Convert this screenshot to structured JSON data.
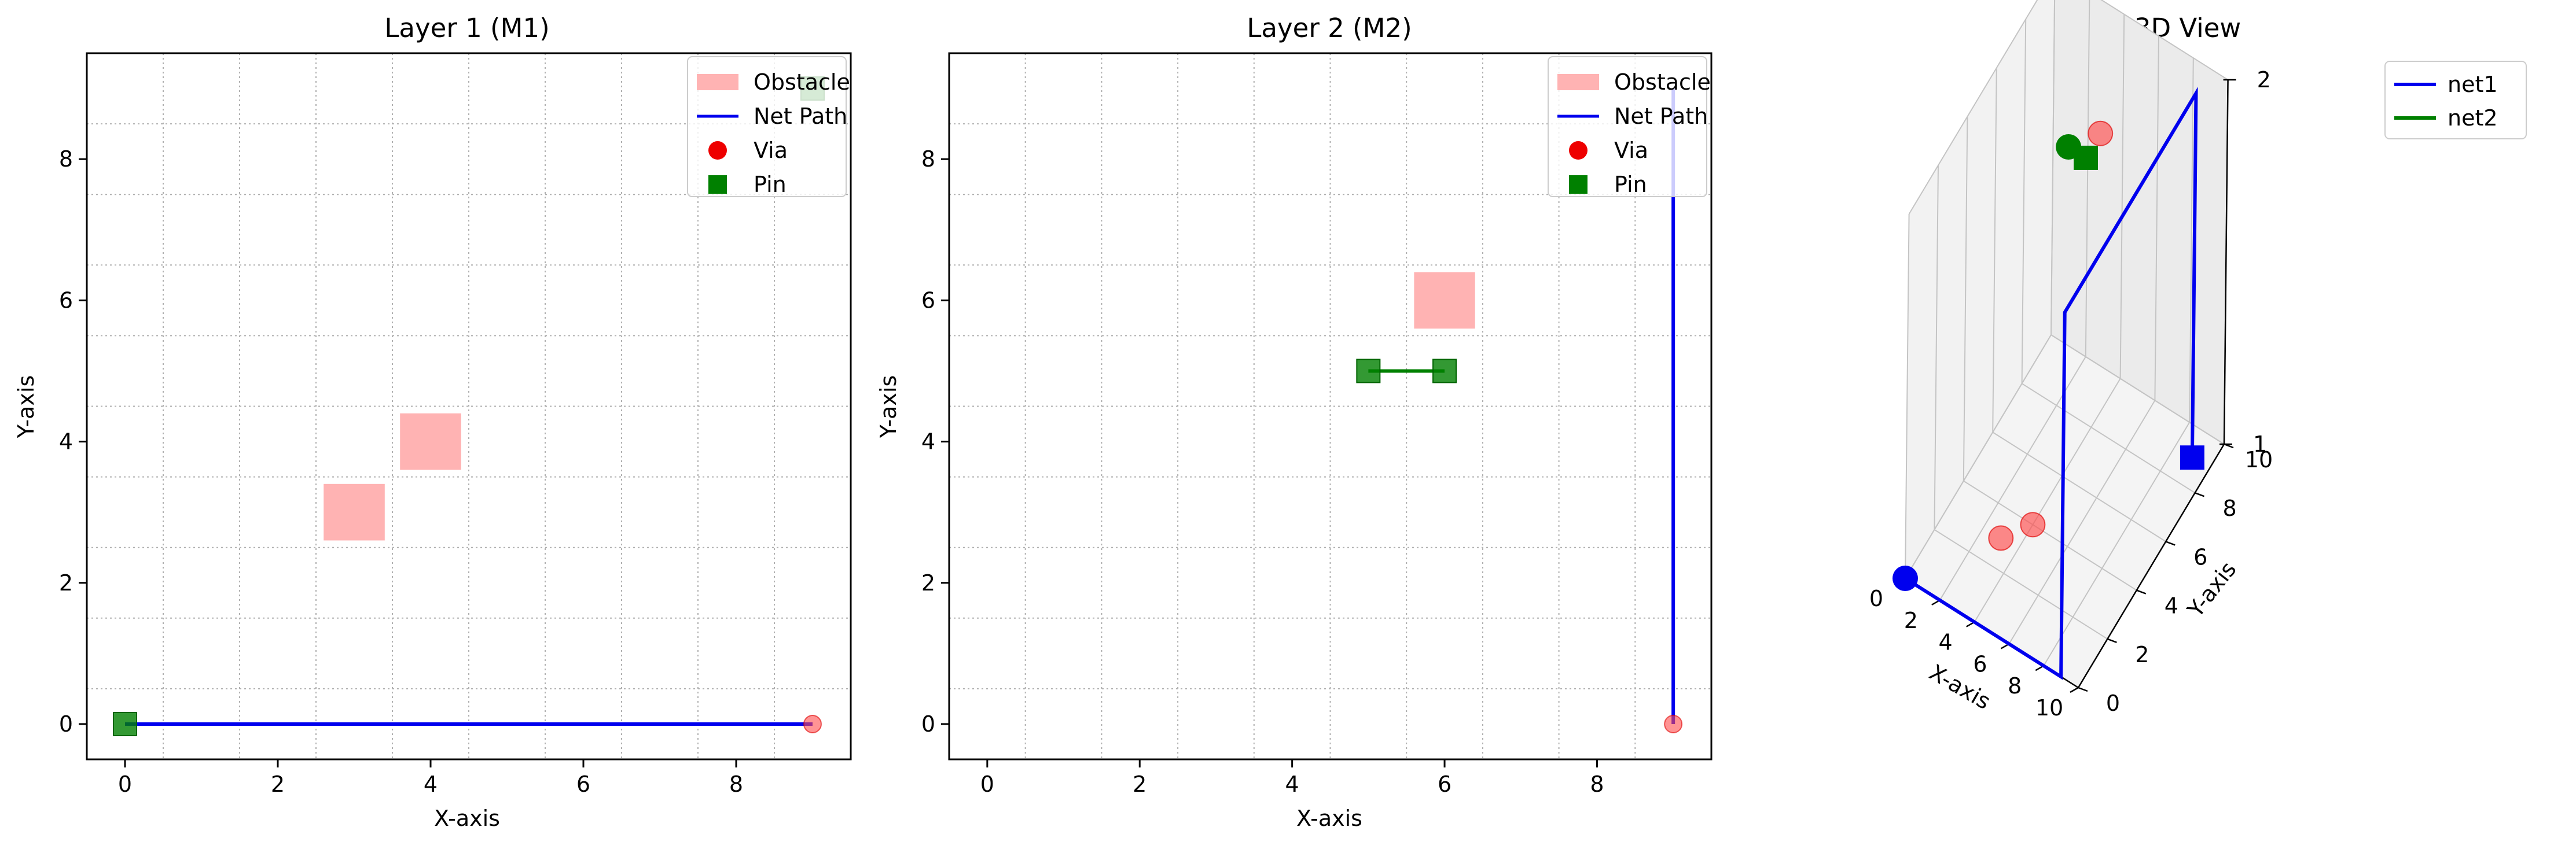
{
  "chart_data": [
    {
      "type": "scatter",
      "title": "Layer 1 (M1)",
      "xlabel": "X-axis",
      "ylabel": "Y-axis",
      "xlim": [
        -0.5,
        9.5
      ],
      "ylim": [
        -0.5,
        9.5
      ],
      "xticks": [
        0,
        2,
        4,
        6,
        8
      ],
      "yticks": [
        0,
        2,
        4,
        6,
        8
      ],
      "grid": true,
      "legend": {
        "placement": "upper right",
        "items": [
          {
            "label": "Obstacle",
            "marker": "rect",
            "color": "#ffb3b3"
          },
          {
            "label": "Net Path",
            "marker": "line",
            "color": "#0000ee"
          },
          {
            "label": "Via",
            "marker": "circle",
            "color": "#ee0000"
          },
          {
            "label": "Pin",
            "marker": "square",
            "color": "#008000"
          }
        ]
      },
      "obstacles": [
        {
          "x": [
            2.6,
            3.4
          ],
          "y": [
            2.6,
            3.4
          ]
        },
        {
          "x": [
            3.6,
            4.4
          ],
          "y": [
            3.6,
            4.4
          ]
        }
      ],
      "net_paths": [
        {
          "color": "#0000ee",
          "points": [
            [
              0,
              0
            ],
            [
              9,
              0
            ]
          ]
        }
      ],
      "vias": [
        [
          9,
          0
        ]
      ],
      "pins": [
        [
          0,
          0
        ],
        [
          9,
          9
        ]
      ]
    },
    {
      "type": "scatter",
      "title": "Layer 2 (M2)",
      "xlabel": "X-axis",
      "ylabel": "Y-axis",
      "xlim": [
        -0.5,
        9.5
      ],
      "ylim": [
        -0.5,
        9.5
      ],
      "xticks": [
        0,
        2,
        4,
        6,
        8
      ],
      "yticks": [
        0,
        2,
        4,
        6,
        8
      ],
      "grid": true,
      "legend": {
        "placement": "upper right",
        "items": [
          {
            "label": "Obstacle",
            "marker": "rect",
            "color": "#ffb3b3"
          },
          {
            "label": "Net Path",
            "marker": "line",
            "color": "#0000ee"
          },
          {
            "label": "Via",
            "marker": "circle",
            "color": "#ee0000"
          },
          {
            "label": "Pin",
            "marker": "square",
            "color": "#008000"
          }
        ]
      },
      "obstacles": [
        {
          "x": [
            5.6,
            6.4
          ],
          "y": [
            5.6,
            6.4
          ]
        }
      ],
      "net_paths": [
        {
          "color": "#0000ee",
          "points": [
            [
              9,
              0
            ],
            [
              9,
              9
            ]
          ]
        },
        {
          "color": "#008000",
          "points": [
            [
              5,
              5
            ],
            [
              6,
              5
            ]
          ]
        }
      ],
      "vias": [
        [
          9,
          0
        ]
      ],
      "pins": [
        [
          5,
          5
        ],
        [
          6,
          5
        ]
      ]
    },
    {
      "type": "line",
      "projection": "3d",
      "title": "3D View",
      "xlabel": "X-axis",
      "ylabel": "Y-axis",
      "zlabel": "",
      "xlim": [
        0,
        10
      ],
      "ylim": [
        0,
        10
      ],
      "zlim": [
        1,
        2
      ],
      "xticks": [
        0,
        2,
        4,
        6,
        8,
        10
      ],
      "yticks": [
        0,
        2,
        4,
        6,
        8,
        10
      ],
      "zticks": [
        1,
        2
      ],
      "grid": true,
      "legend": {
        "placement": "upper right",
        "items": [
          {
            "label": "net1",
            "color": "#0000ee"
          },
          {
            "label": "net2",
            "color": "#008000"
          }
        ]
      },
      "series": [
        {
          "name": "net1",
          "color": "#0000ee",
          "points": [
            [
              0,
              0,
              1
            ],
            [
              9,
              0,
              1
            ],
            [
              9,
              0,
              2
            ],
            [
              9,
              9,
              2
            ],
            [
              9,
              9,
              1
            ]
          ],
          "start": [
            0,
            0,
            1
          ],
          "end": [
            9,
            9,
            1
          ]
        },
        {
          "name": "net2",
          "color": "#008000",
          "points": [
            [
              5,
              5,
              2
            ],
            [
              6,
              5,
              2
            ]
          ],
          "start": [
            5,
            5,
            2
          ],
          "end": [
            6,
            5,
            2
          ]
        }
      ],
      "vias": [
        [
          3,
          3,
          1
        ],
        [
          4,
          4,
          1
        ],
        [
          6,
          6,
          2
        ]
      ]
    }
  ]
}
